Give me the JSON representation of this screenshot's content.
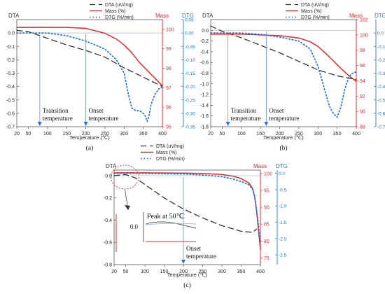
{
  "chart_data": [
    {
      "id": "a",
      "type": "line",
      "caption": "(a)",
      "xlabel": "Temperature (℃)",
      "x_ticks": [
        20,
        50,
        100,
        150,
        200,
        250,
        300,
        350,
        400
      ],
      "axes": {
        "left": {
          "title": "DTA",
          "min": -0.7,
          "max": 0.1,
          "ticks": [
            "0.0",
            "-0.1",
            "-0.2",
            "-0.3",
            "-0.4",
            "-0.5",
            "-0.6",
            "-0.7"
          ],
          "tick_values": [
            0,
            -0.1,
            -0.2,
            -0.3,
            -0.4,
            -0.5,
            -0.6,
            -0.7
          ],
          "color": "#333333"
        },
        "mass": {
          "title": "Mass",
          "min": 95,
          "max": 100.5,
          "ticks": [
            "100",
            "99",
            "98",
            "97",
            "96",
            "95"
          ],
          "tick_values": [
            100,
            99,
            98,
            97,
            96,
            95
          ],
          "color": "#e8262d"
        },
        "dtg": {
          "title": "DTG",
          "min": -0.35,
          "max": 0.05,
          "ticks": [
            "0.05",
            "0.00",
            "-0.05",
            "-0.10",
            "-0.15",
            "-0.20",
            "-0.25",
            "-0.30",
            "-0.35"
          ],
          "tick_values": [
            0.05,
            0,
            -0.05,
            -0.1,
            -0.15,
            -0.2,
            -0.25,
            -0.3,
            -0.35
          ],
          "color": "#1f77d0"
        }
      },
      "legend": [
        "DTA (uV/mg)",
        "Mass (%)",
        "DTG (%/min)"
      ],
      "series": [
        {
          "name": "DTA (uV/mg)",
          "axis": "left",
          "x": [
            20,
            50,
            100,
            150,
            200,
            250,
            300,
            350,
            400
          ],
          "y": [
            0.02,
            0.01,
            -0.04,
            -0.09,
            -0.13,
            -0.18,
            -0.26,
            -0.33,
            -0.4
          ]
        },
        {
          "name": "Mass (%)",
          "axis": "mass",
          "x": [
            20,
            100,
            150,
            200,
            250,
            280,
            300,
            320,
            340,
            360,
            380,
            400
          ],
          "y": [
            100.1,
            100.1,
            100.1,
            100.05,
            99.8,
            99.5,
            99.2,
            98.8,
            98.3,
            97.9,
            97.5,
            97.1
          ]
        },
        {
          "name": "DTG (%/min)",
          "axis": "dtg",
          "x": [
            20,
            50,
            100,
            150,
            200,
            250,
            280,
            300,
            310,
            320,
            330,
            340,
            350,
            355,
            360,
            365,
            370,
            380,
            390,
            400
          ],
          "y": [
            0.0,
            0.0,
            0.0,
            -0.01,
            -0.03,
            -0.06,
            -0.1,
            -0.15,
            -0.22,
            -0.28,
            -0.29,
            -0.29,
            -0.3,
            -0.31,
            -0.33,
            -0.31,
            -0.27,
            -0.23,
            -0.21,
            -0.2
          ]
        }
      ],
      "markers": [
        {
          "label": "Transition temperature",
          "x": 80
        },
        {
          "label": "Onset temperature",
          "x": 200
        }
      ]
    },
    {
      "id": "b",
      "type": "line",
      "caption": "(b)",
      "xlabel": "Temperature (℃)",
      "x_ticks": [
        20,
        50,
        100,
        150,
        200,
        250,
        300,
        350,
        400
      ],
      "axes": {
        "left": {
          "title": "DTA",
          "min": -1.8,
          "max": 0.2,
          "ticks": [
            "0.0",
            "-0.2",
            "-0.4",
            "-0.6",
            "-0.8",
            "-1.0",
            "-1.2",
            "-1.4",
            "-1.6",
            "-1.8"
          ],
          "tick_values": [
            0,
            -0.2,
            -0.4,
            -0.6,
            -0.8,
            -1.0,
            -1.2,
            -1.4,
            -1.6,
            -1.8
          ],
          "color": "#333333"
        },
        "mass": {
          "title": "Mass",
          "min": 88,
          "max": 102,
          "ticks": [
            "102",
            "100",
            "98",
            "96",
            "94",
            "92",
            "90",
            "88"
          ],
          "tick_values": [
            102,
            100,
            98,
            96,
            94,
            92,
            90,
            88
          ],
          "color": "#e8262d"
        },
        "dtg": {
          "title": "DTG",
          "min": -0.7,
          "max": 0.1,
          "ticks": [
            "0.0",
            "-0.1",
            "-0.2",
            "-0.3",
            "-0.4",
            "-0.5",
            "-0.6",
            "-0.7"
          ],
          "tick_values": [
            0,
            -0.1,
            -0.2,
            -0.3,
            -0.4,
            -0.5,
            -0.6,
            -0.7
          ],
          "color": "#1f77d0"
        }
      },
      "legend": [
        "DTA (uV/mg)",
        "Mass (%)",
        "DTG (%/min)"
      ],
      "series": [
        {
          "name": "DTA (uV/mg)",
          "axis": "left",
          "x": [
            20,
            50,
            100,
            150,
            200,
            250,
            300,
            350,
            400
          ],
          "y": [
            0.08,
            -0.02,
            -0.14,
            -0.28,
            -0.42,
            -0.58,
            -0.74,
            -0.85,
            -0.92
          ]
        },
        {
          "name": "Mass (%)",
          "axis": "mass",
          "x": [
            20,
            100,
            150,
            200,
            250,
            280,
            300,
            320,
            340,
            360,
            380,
            400
          ],
          "y": [
            100.1,
            100.1,
            100.0,
            99.9,
            99.6,
            99.1,
            98.5,
            97.6,
            96.6,
            95.6,
            94.7,
            93.9
          ]
        },
        {
          "name": "DTG (%/min)",
          "axis": "dtg",
          "x": [
            20,
            50,
            100,
            150,
            200,
            250,
            280,
            300,
            320,
            330,
            340,
            350,
            360,
            370,
            380,
            390,
            400
          ],
          "y": [
            0.0,
            0.0,
            0.0,
            -0.01,
            -0.03,
            -0.06,
            -0.12,
            -0.25,
            -0.45,
            -0.55,
            -0.6,
            -0.63,
            -0.55,
            -0.42,
            -0.33,
            -0.3,
            -0.29
          ]
        }
      ],
      "markers": [
        {
          "label": "Transition temperature",
          "x": 65
        },
        {
          "label": "Onset temperature",
          "x": 165
        }
      ]
    },
    {
      "id": "c",
      "type": "line",
      "caption": "(c)",
      "xlabel": "Temperature (℃)",
      "x_ticks": [
        20,
        50,
        100,
        150,
        200,
        250,
        300,
        350,
        400
      ],
      "axes": {
        "left": {
          "title": "DTA",
          "min": -0.8,
          "max": 0.05,
          "ticks": [
            "0.0",
            "-0.2",
            "-0.4",
            "-0.6",
            "-0.8"
          ],
          "tick_values": [
            0,
            -0.2,
            -0.4,
            -0.6,
            -0.8
          ],
          "color": "#333333"
        },
        "mass": {
          "title": "Mass",
          "min": 73,
          "max": 101,
          "ticks": [
            "100",
            "95",
            "90",
            "85",
            "80",
            "75"
          ],
          "tick_values": [
            100,
            95,
            90,
            85,
            80,
            75
          ],
          "color": "#e8262d"
        },
        "dtg": {
          "title": "DTG",
          "min": -2.8,
          "max": 0.1,
          "ticks": [
            "0.0",
            "-0.5",
            "-1.0",
            "-1.5",
            "-2.0",
            "-2.5"
          ],
          "tick_values": [
            0,
            -0.5,
            -1.0,
            -1.5,
            -2.0,
            -2.5
          ],
          "color": "#1f77d0"
        }
      },
      "legend": [
        "DTA (uV/mg)",
        "Mass (%)",
        "DTG (%/min)"
      ],
      "series": [
        {
          "name": "DTA (uV/mg)",
          "axis": "left",
          "x": [
            20,
            50,
            75,
            100,
            150,
            200,
            250,
            300,
            350,
            380,
            390
          ],
          "y": [
            0.0,
            0.01,
            -0.02,
            -0.08,
            -0.2,
            -0.3,
            -0.38,
            -0.45,
            -0.5,
            -0.51,
            -0.48
          ]
        },
        {
          "name": "Mass (%)",
          "axis": "mass",
          "x": [
            20,
            100,
            200,
            250,
            300,
            330,
            350,
            370,
            380,
            385,
            390,
            395,
            400
          ],
          "y": [
            100.2,
            100.2,
            100.1,
            100.0,
            99.7,
            99.2,
            98.5,
            97.2,
            95.5,
            93,
            89,
            83,
            77.5
          ]
        },
        {
          "name": "DTG (%/min)",
          "axis": "dtg",
          "x": [
            20,
            100,
            200,
            250,
            300,
            330,
            350,
            370,
            380,
            385,
            390,
            395,
            400
          ],
          "y": [
            0.0,
            0.0,
            -0.02,
            -0.05,
            -0.1,
            -0.18,
            -0.25,
            -0.35,
            -0.5,
            -0.7,
            -1.1,
            -1.6,
            -2.2
          ]
        }
      ],
      "markers": [
        {
          "label": "Onset temperature",
          "x": 200
        }
      ],
      "annotation": {
        "label": "Peak at 50℃",
        "zoom_tick": "0.0"
      }
    }
  ]
}
